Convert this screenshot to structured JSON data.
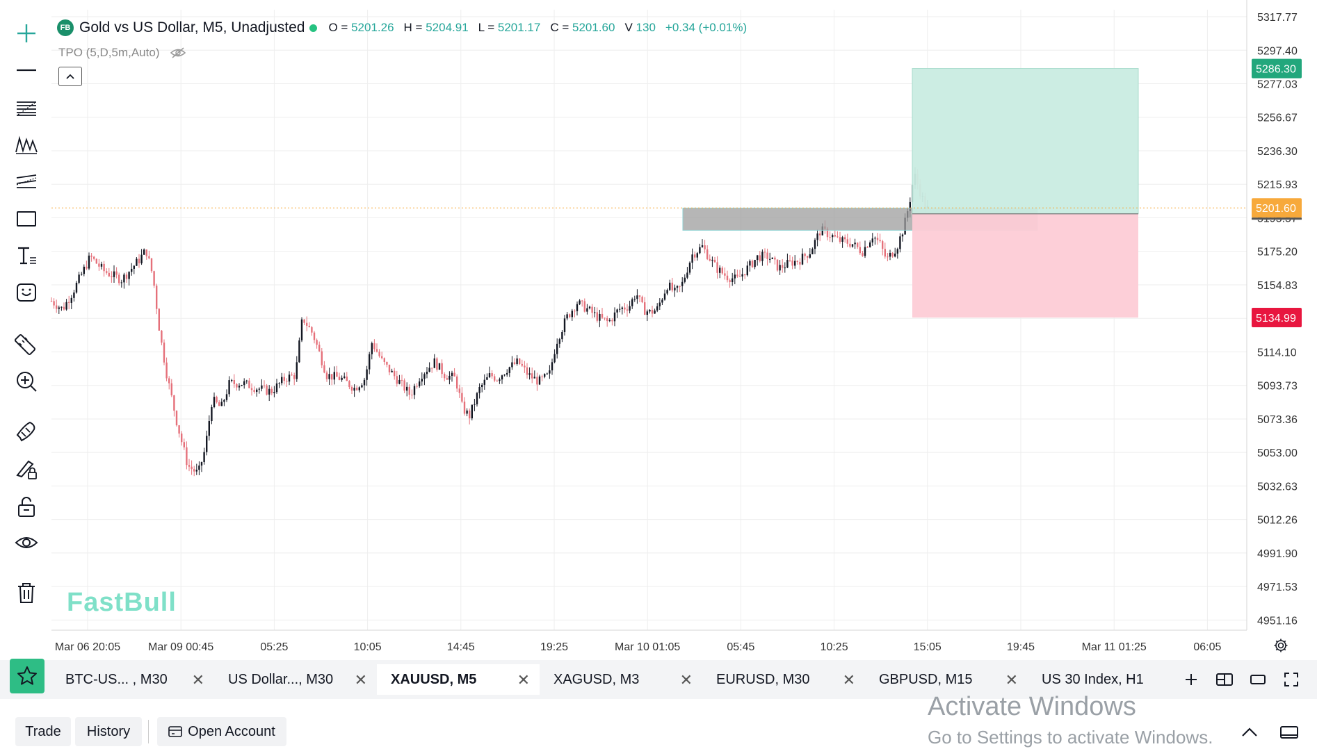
{
  "chart": {
    "logo_text": "FB",
    "title": "Gold vs US Dollar, M5, Unadjusted",
    "ohlc": [
      {
        "label": "O =",
        "value": "5201.26"
      },
      {
        "label": "H =",
        "value": "5204.91"
      },
      {
        "label": "L =",
        "value": "5201.17"
      },
      {
        "label": "C =",
        "value": "5201.60"
      },
      {
        "label": "V",
        "value": "130"
      }
    ],
    "change": "+0.34 (+0.01%)",
    "indicator": "TPO (5,D,5m,Auto)",
    "watermark": "FastBull",
    "colors": {
      "up": "#131722",
      "down": "#e5707a",
      "grid": "#eeeeee",
      "tp_zone": "#c9ece2",
      "sl_zone": "#fdccd6",
      "gray_box": "#9e9e9e",
      "price_tag": "#f7a93b",
      "tp_tag": "#22a77c",
      "sl_tag": "#e8163f",
      "accent": "#2ebd85"
    },
    "y_axis": [
      "5317.77",
      "5297.40",
      "5277.03",
      "5256.67",
      "5236.30",
      "5215.93",
      "5195.57",
      "5175.20",
      "5154.83",
      "5134.46",
      "5114.10",
      "5093.73",
      "5073.36",
      "5053.00",
      "5032.63",
      "5012.26",
      "4991.90",
      "4971.53",
      "4951.16"
    ],
    "x_axis": [
      "Mar 06 20:05",
      "Mar 09 00:45",
      "05:25",
      "10:05",
      "14:45",
      "19:25",
      "Mar 10 01:05",
      "05:45",
      "10:25",
      "15:05",
      "19:45",
      "Mar 11 01:25",
      "06:05"
    ],
    "price_tags": {
      "current": "5201.60",
      "take_profit": "5286.30",
      "stop_loss": "5134.99"
    },
    "ylim": [
      4945,
      5322
    ],
    "position_tool": {
      "entry": 5198,
      "take_profit": 5286.3,
      "stop_loss": 5134.99
    },
    "gray_zone": {
      "top": 5201.5,
      "bottom": 5188
    }
  },
  "tools": [
    {
      "name": "crosshair-icon"
    },
    {
      "name": "horizontal-line-icon"
    },
    {
      "name": "fib-retracement-icon"
    },
    {
      "name": "pattern-icon"
    },
    {
      "name": "parallel-channel-icon"
    },
    {
      "name": "rectangle-icon"
    },
    {
      "name": "text-icon"
    },
    {
      "name": "emoji-icon"
    },
    {
      "name": "ruler-icon"
    },
    {
      "name": "zoom-in-icon"
    },
    {
      "name": "magnet-icon"
    },
    {
      "name": "lock-drawing-icon"
    },
    {
      "name": "unlock-icon"
    },
    {
      "name": "eye-icon"
    },
    {
      "name": "trash-icon"
    }
  ],
  "tabs": [
    {
      "label": "BTC-US...  , M30"
    },
    {
      "label": "US Dollar..., M30"
    },
    {
      "label": "XAUUSD, M5",
      "active": true
    },
    {
      "label": "XAGUSD, M3"
    },
    {
      "label": "EURUSD, M30"
    },
    {
      "label": "GBPUSD, M15"
    },
    {
      "label": "US 30 Index, H1"
    }
  ],
  "bottom": {
    "trade": "Trade",
    "history": "History",
    "open_account": "Open Account"
  },
  "windows": {
    "line1": "Activate Windows",
    "line2": "Go to Settings to activate Windows."
  }
}
